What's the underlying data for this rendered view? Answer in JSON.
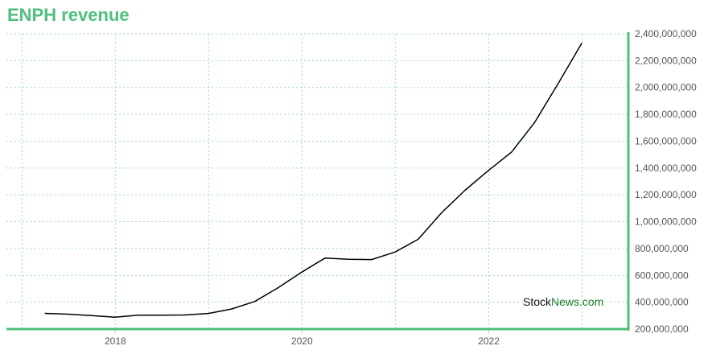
{
  "title": "ENPH revenue",
  "watermark": {
    "part1": "Stock",
    "part2": "News",
    "part3": ".com"
  },
  "colors": {
    "accent": "#4fbf7f",
    "grid": "#9ddcb8",
    "line": "#000000",
    "watermark_green": "#1a7a2a"
  },
  "chart_data": {
    "type": "line",
    "title": "ENPH revenue",
    "xlabel": "",
    "ylabel": "",
    "x_ticks": [
      "2018",
      "2020",
      "2022"
    ],
    "y_ticks": [
      "200,000,000",
      "400,000,000",
      "600,000,000",
      "800,000,000",
      "1,000,000,000",
      "1,200,000,000",
      "1,400,000,000",
      "1,600,000,000",
      "1,800,000,000",
      "2,000,000,000",
      "2,200,000,000",
      "2,400,000,000"
    ],
    "ylim": [
      200000000,
      2400000000
    ],
    "xlim": [
      "2016-11-01",
      "2023-07-01"
    ],
    "grid": true,
    "series": [
      {
        "points": [
          [
            "2017-03-31",
            317000000
          ],
          [
            "2017-06-30",
            311000000
          ],
          [
            "2017-09-30",
            300000000
          ],
          [
            "2017-12-31",
            289000000
          ],
          [
            "2018-03-31",
            303000000
          ],
          [
            "2018-06-30",
            304000000
          ],
          [
            "2018-09-30",
            305000000
          ],
          [
            "2018-12-31",
            316000000
          ],
          [
            "2019-03-31",
            349000000
          ],
          [
            "2019-06-30",
            405000000
          ],
          [
            "2019-09-30",
            508000000
          ],
          [
            "2019-12-31",
            624000000
          ],
          [
            "2020-03-31",
            729000000
          ],
          [
            "2020-06-30",
            720000000
          ],
          [
            "2020-09-30",
            718000000
          ],
          [
            "2020-12-31",
            774000000
          ],
          [
            "2021-03-31",
            869000000
          ],
          [
            "2021-06-30",
            1066000000
          ],
          [
            "2021-09-30",
            1234000000
          ],
          [
            "2021-12-31",
            1382000000
          ],
          [
            "2022-03-31",
            1518000000
          ],
          [
            "2022-06-30",
            1741000000
          ],
          [
            "2022-09-30",
            2031000000
          ],
          [
            "2022-12-31",
            2331000000
          ]
        ]
      }
    ]
  }
}
